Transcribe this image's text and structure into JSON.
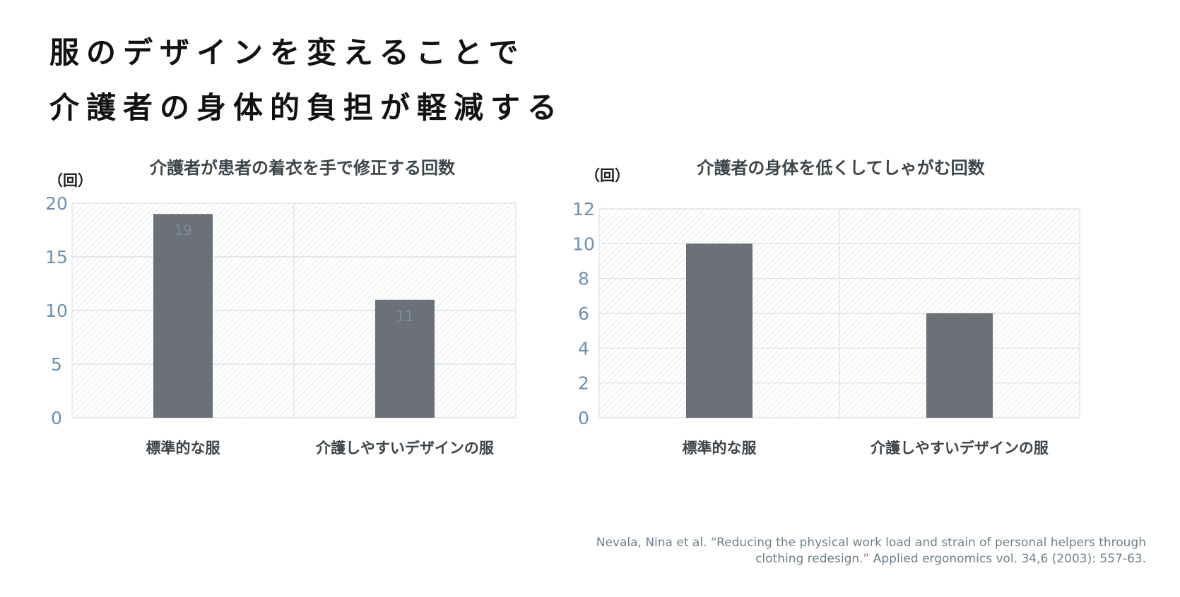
{
  "headline": {
    "line1": "服のデザインを変えることで",
    "line2": "介護者の身体的負担が軽減する"
  },
  "colors": {
    "bar": "#6b7177",
    "tick_text": "#6f8fa8",
    "grid": "#d8dde6",
    "hatch": "#dde1e7",
    "label_text": "#3f4448"
  },
  "chart_data": [
    {
      "type": "bar",
      "title": "介護者が患者の着衣を手で修正する回数",
      "ylabel": "（回）",
      "xlabel": "",
      "categories": [
        "標準的な服",
        "介護しやすいデザインの服"
      ],
      "values": [
        19,
        11
      ],
      "data_labels": [
        "19",
        "11"
      ],
      "ylim": [
        0,
        20
      ],
      "yticks": [
        0,
        5,
        10,
        15,
        20
      ],
      "grid": true,
      "legend": "none"
    },
    {
      "type": "bar",
      "title": "介護者の身体を低くしてしゃがむ回数",
      "ylabel": "（回）",
      "xlabel": "",
      "categories": [
        "標準的な服",
        "介護しやすいデザインの服"
      ],
      "values": [
        10,
        6
      ],
      "data_labels": [],
      "ylim": [
        0,
        12
      ],
      "yticks": [
        0,
        2,
        4,
        6,
        8,
        10,
        12
      ],
      "grid": true,
      "legend": "none"
    }
  ],
  "citation": {
    "line1": "Nevala, Nina et al. “Reducing the physical work load and strain of personal helpers through",
    "line2": "clothing redesign.” Applied ergonomics vol. 34,6 (2003): 557-63."
  }
}
